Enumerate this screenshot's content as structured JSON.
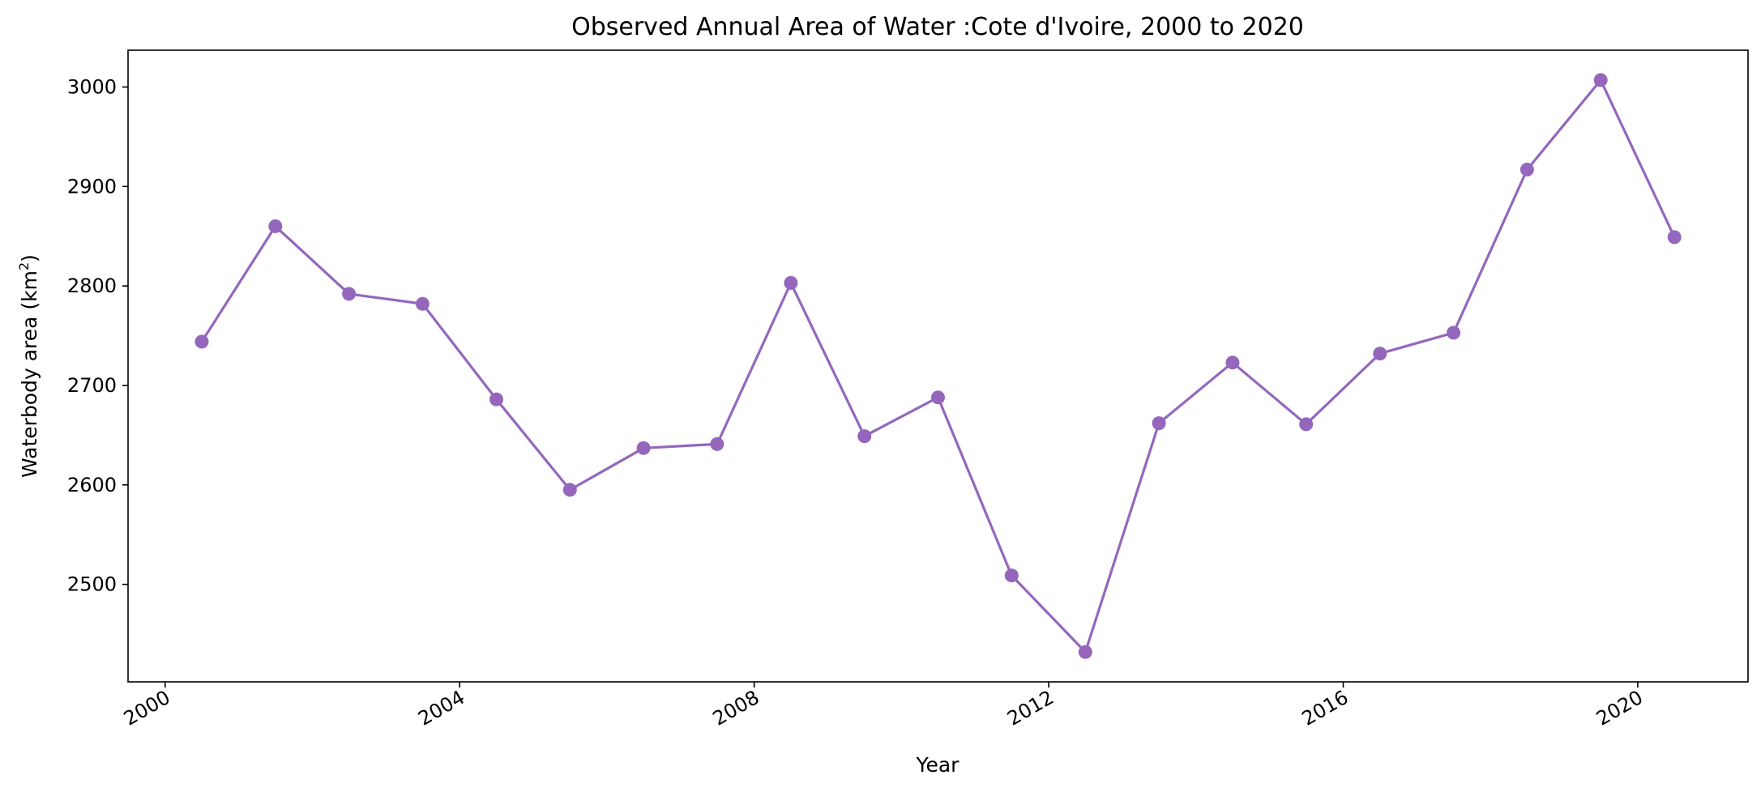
{
  "chart_data": {
    "type": "line",
    "title": "Observed Annual Area of Water :Cote d'Ivoire, 2000 to 2020",
    "xlabel": "Year",
    "ylabel_main": "Waterbody area (km",
    "ylabel_sup": "2",
    "ylabel_end": ")",
    "x": [
      "2000-07-01",
      "2001-07-01",
      "2002-07-01",
      "2003-07-01",
      "2004-07-01",
      "2005-07-01",
      "2006-07-01",
      "2007-07-01",
      "2008-07-01",
      "2009-07-01",
      "2010-07-01",
      "2011-07-01",
      "2012-07-01",
      "2013-07-01",
      "2014-07-01",
      "2015-07-01",
      "2016-07-01",
      "2017-07-01",
      "2018-07-01",
      "2019-07-01",
      "2020-07-01"
    ],
    "values": [
      2744,
      2860,
      2792,
      2782,
      2686,
      2595,
      2637,
      2641,
      2803,
      2649,
      2688,
      2509,
      2432,
      2662,
      2723,
      2661,
      2732,
      2753,
      2917,
      3007,
      2849
    ],
    "xlim": [
      "1999-07-01",
      "2021-07-01"
    ],
    "ylim": [
      2402,
      3037
    ],
    "x_tick_labels": [
      "2000",
      "2004",
      "2008",
      "2012",
      "2016",
      "2020"
    ],
    "y_ticks": [
      2500,
      2600,
      2700,
      2800,
      2900,
      3000
    ],
    "y_tick_labels": [
      "2500",
      "2600",
      "2700",
      "2800",
      "2900",
      "3000"
    ],
    "line_color": "#9467bd",
    "grid": false,
    "legend": "none"
  }
}
